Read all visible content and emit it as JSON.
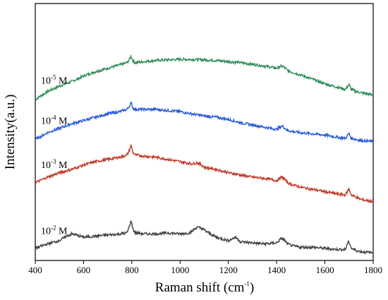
{
  "chart_data": {
    "type": "line",
    "title": "",
    "xlabel": "Raman shift (cm",
    "xlabel_sup": "-1",
    "xlabel_tail": ")",
    "ylabel": "Intensity(a.u.)",
    "xlim": [
      400,
      1800
    ],
    "ylim": [
      0,
      1
    ],
    "y_ticks_shown": false,
    "grid": false,
    "x_ticks": [
      400,
      600,
      800,
      1000,
      1200,
      1400,
      1600,
      1800
    ],
    "x_tick_labels": [
      "400",
      "600",
      "800",
      "1000",
      "1200",
      "1400",
      "1600",
      "1800"
    ],
    "series": [
      {
        "name_base": "10",
        "name_sup": "-5",
        "name_tail": " M",
        "color": "#2e8b57",
        "x": [
          400,
          450,
          500,
          550,
          600,
          650,
          700,
          750,
          780,
          790,
          797,
          805,
          815,
          850,
          900,
          950,
          1000,
          1050,
          1100,
          1150,
          1200,
          1250,
          1300,
          1350,
          1400,
          1420,
          1430,
          1445,
          1470,
          1500,
          1550,
          1600,
          1650,
          1685,
          1695,
          1700,
          1710,
          1730,
          1750,
          1800
        ],
        "values": [
          0.68,
          0.715,
          0.74,
          0.76,
          0.785,
          0.805,
          0.82,
          0.835,
          0.845,
          0.86,
          0.875,
          0.852,
          0.845,
          0.85,
          0.855,
          0.858,
          0.86,
          0.86,
          0.858,
          0.855,
          0.85,
          0.845,
          0.838,
          0.83,
          0.82,
          0.83,
          0.825,
          0.81,
          0.8,
          0.79,
          0.77,
          0.75,
          0.735,
          0.725,
          0.74,
          0.745,
          0.725,
          0.715,
          0.71,
          0.7
        ]
      },
      {
        "name_base": "10",
        "name_sup": "-4",
        "name_tail": " M",
        "color": "#2a5bd7",
        "x": [
          400,
          450,
          500,
          550,
          600,
          650,
          700,
          750,
          780,
          790,
          797,
          805,
          815,
          850,
          900,
          950,
          1000,
          1050,
          1100,
          1150,
          1200,
          1250,
          1300,
          1350,
          1400,
          1420,
          1430,
          1445,
          1470,
          1500,
          1550,
          1600,
          1650,
          1685,
          1695,
          1700,
          1710,
          1730,
          1750,
          1800
        ],
        "values": [
          0.5,
          0.53,
          0.55,
          0.57,
          0.585,
          0.6,
          0.615,
          0.625,
          0.635,
          0.65,
          0.665,
          0.64,
          0.635,
          0.635,
          0.635,
          0.63,
          0.625,
          0.615,
          0.605,
          0.6,
          0.59,
          0.575,
          0.565,
          0.555,
          0.545,
          0.56,
          0.555,
          0.54,
          0.535,
          0.53,
          0.525,
          0.52,
          0.51,
          0.505,
          0.52,
          0.525,
          0.505,
          0.5,
          0.495,
          0.49
        ]
      },
      {
        "name_base": "10",
        "name_sup": "-3",
        "name_tail": " M",
        "color": "#c0392b",
        "x": [
          400,
          450,
          500,
          550,
          600,
          650,
          700,
          750,
          780,
          790,
          797,
          805,
          815,
          850,
          900,
          950,
          1000,
          1050,
          1070,
          1090,
          1100,
          1150,
          1200,
          1250,
          1300,
          1350,
          1400,
          1420,
          1430,
          1445,
          1470,
          1500,
          1550,
          1600,
          1650,
          1685,
          1695,
          1700,
          1710,
          1730,
          1750,
          1800
        ],
        "values": [
          0.305,
          0.33,
          0.35,
          0.365,
          0.385,
          0.4,
          0.41,
          0.42,
          0.43,
          0.45,
          0.475,
          0.44,
          0.43,
          0.425,
          0.42,
          0.41,
          0.4,
          0.39,
          0.395,
          0.385,
          0.375,
          0.365,
          0.35,
          0.34,
          0.33,
          0.325,
          0.315,
          0.33,
          0.325,
          0.305,
          0.295,
          0.285,
          0.275,
          0.265,
          0.255,
          0.25,
          0.27,
          0.275,
          0.25,
          0.24,
          0.23,
          0.22
        ]
      },
      {
        "name_base": "10",
        "name_sup": "-2",
        "name_tail": " M",
        "color": "#404040",
        "x": [
          400,
          450,
          500,
          530,
          550,
          570,
          600,
          650,
          700,
          750,
          780,
          790,
          797,
          805,
          815,
          850,
          900,
          950,
          1000,
          1040,
          1070,
          1090,
          1110,
          1150,
          1200,
          1230,
          1240,
          1250,
          1300,
          1350,
          1400,
          1420,
          1430,
          1445,
          1470,
          1500,
          1550,
          1600,
          1650,
          1685,
          1695,
          1700,
          1710,
          1730,
          1750,
          1800
        ],
        "values": [
          0.01,
          0.03,
          0.045,
          0.065,
          0.075,
          0.07,
          0.06,
          0.065,
          0.07,
          0.075,
          0.08,
          0.11,
          0.135,
          0.095,
          0.08,
          0.075,
          0.075,
          0.08,
          0.075,
          0.08,
          0.105,
          0.1,
          0.085,
          0.06,
          0.045,
          0.06,
          0.05,
          0.04,
          0.035,
          0.03,
          0.035,
          0.055,
          0.05,
          0.03,
          0.02,
          0.015,
          0.015,
          0.01,
          0.005,
          0.005,
          0.035,
          0.04,
          0.01,
          0.0,
          -0.005,
          -0.01
        ]
      }
    ]
  }
}
